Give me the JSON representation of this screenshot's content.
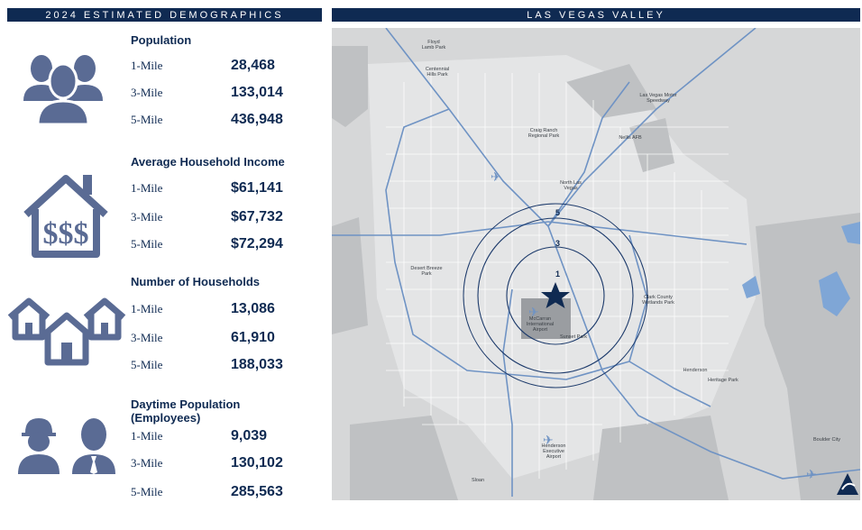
{
  "header_left": "2024 ESTIMATED DEMOGRAPHICS",
  "header_right": "LAS VEGAS VALLEY",
  "sections": [
    {
      "title": "Population",
      "rows": [
        {
          "label": "1-Mile",
          "value": "28,468"
        },
        {
          "label": "3-Mile",
          "value": "133,014"
        },
        {
          "label": "5-Mile",
          "value": "436,948"
        }
      ]
    },
    {
      "title": "Average Household Income",
      "rows": [
        {
          "label": "1-Mile",
          "value": "$61,141"
        },
        {
          "label": "3-Mile",
          "value": "$67,732"
        },
        {
          "label": "5-Mile",
          "value": "$72,294"
        }
      ]
    },
    {
      "title": "Number of Households",
      "rows": [
        {
          "label": "1-Mile",
          "value": "13,086"
        },
        {
          "label": "3-Mile",
          "value": "61,910"
        },
        {
          "label": "5-Mile",
          "value": "188,033"
        }
      ]
    },
    {
      "title": "Daytime Population",
      "subtitle": "(Employees)",
      "rows": [
        {
          "label": "1-Mile",
          "value": "9,039"
        },
        {
          "label": "3-Mile",
          "value": "130,102"
        },
        {
          "label": "5-Mile",
          "value": "285,563"
        }
      ]
    }
  ],
  "icons": [
    "people-group-icon",
    "house-dollar-icon",
    "houses-icon",
    "workers-icon"
  ],
  "colors": {
    "navy": "#0f2a52",
    "icon_blue": "#5a6b94",
    "map_bg": "#d6d7d8",
    "road": "#ffffff",
    "highway": "#6f93c4",
    "ring": "#1c3a6b",
    "park": "#bfc1c3"
  },
  "map": {
    "ring_labels": [
      "1",
      "3",
      "5"
    ],
    "places": [
      {
        "id": "floyd-lamb",
        "text": "Floyd\nLamb Park"
      },
      {
        "id": "centennial",
        "text": "Centennial\nHills Park"
      },
      {
        "id": "speedway",
        "text": "Las Vegas Motor\nSpeedway"
      },
      {
        "id": "craig-ranch",
        "text": "Craig Ranch\nRegional Park"
      },
      {
        "id": "nellis",
        "text": "Nellis AFB"
      },
      {
        "id": "north-lv",
        "text": "North Las\nVegas"
      },
      {
        "id": "desert-breeze",
        "text": "Desert Breeze Park"
      },
      {
        "id": "airport",
        "text": "McCarran\nInternational\nAirport"
      },
      {
        "id": "sunset",
        "text": "Sunset Park"
      },
      {
        "id": "clark-county",
        "text": "Clark County\nWetlands Park"
      },
      {
        "id": "henderson",
        "text": "Henderson"
      },
      {
        "id": "heritage",
        "text": "Heritage Park"
      },
      {
        "id": "hnd-airport",
        "text": "Henderson\nExecutive\nAirport"
      },
      {
        "id": "boulder",
        "text": "Boulder City"
      },
      {
        "id": "sloan",
        "text": "Sloan"
      }
    ]
  }
}
